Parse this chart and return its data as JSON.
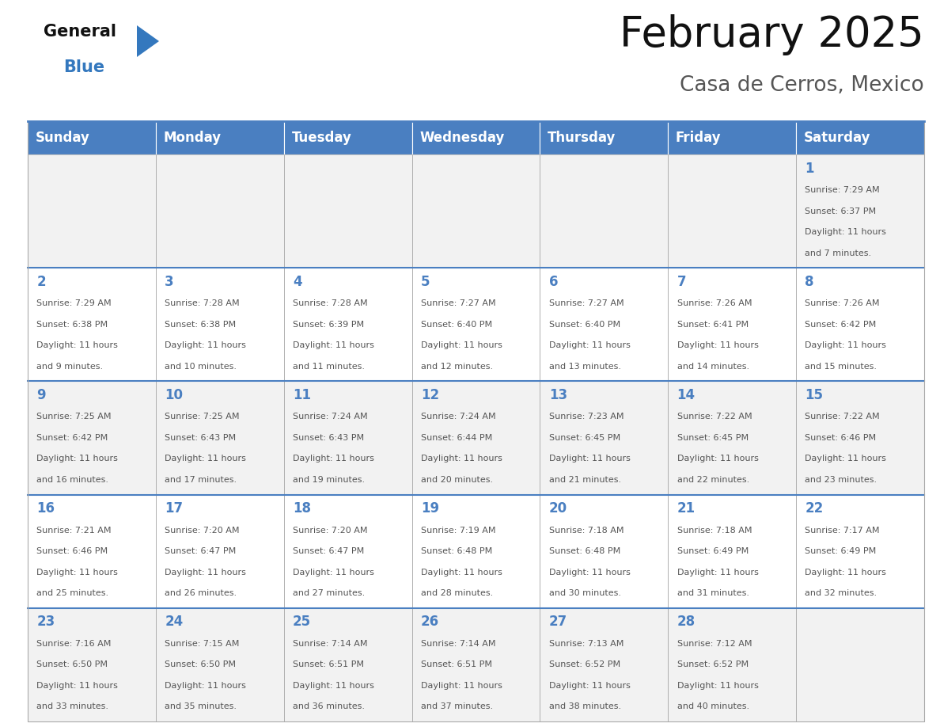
{
  "title": "February 2025",
  "subtitle": "Casa de Cerros, Mexico",
  "days_of_week": [
    "Sunday",
    "Monday",
    "Tuesday",
    "Wednesday",
    "Thursday",
    "Friday",
    "Saturday"
  ],
  "header_bg": "#4a7fc1",
  "header_text": "#FFFFFF",
  "cell_bg_odd_row": "#F2F2F2",
  "cell_bg_even_row": "#FFFFFF",
  "cell_border": "#AAAAAA",
  "day_num_color": "#4a7fc1",
  "text_color": "#555555",
  "title_color": "#111111",
  "subtitle_color": "#555555",
  "logo_general_color": "#111111",
  "logo_blue_color": "#3478BE",
  "calendar": [
    [
      null,
      null,
      null,
      null,
      null,
      null,
      1
    ],
    [
      2,
      3,
      4,
      5,
      6,
      7,
      8
    ],
    [
      9,
      10,
      11,
      12,
      13,
      14,
      15
    ],
    [
      16,
      17,
      18,
      19,
      20,
      21,
      22
    ],
    [
      23,
      24,
      25,
      26,
      27,
      28,
      null
    ]
  ],
  "sunrise": {
    "1": "7:29 AM",
    "2": "7:29 AM",
    "3": "7:28 AM",
    "4": "7:28 AM",
    "5": "7:27 AM",
    "6": "7:27 AM",
    "7": "7:26 AM",
    "8": "7:26 AM",
    "9": "7:25 AM",
    "10": "7:25 AM",
    "11": "7:24 AM",
    "12": "7:24 AM",
    "13": "7:23 AM",
    "14": "7:22 AM",
    "15": "7:22 AM",
    "16": "7:21 AM",
    "17": "7:20 AM",
    "18": "7:20 AM",
    "19": "7:19 AM",
    "20": "7:18 AM",
    "21": "7:18 AM",
    "22": "7:17 AM",
    "23": "7:16 AM",
    "24": "7:15 AM",
    "25": "7:14 AM",
    "26": "7:14 AM",
    "27": "7:13 AM",
    "28": "7:12 AM"
  },
  "sunset": {
    "1": "6:37 PM",
    "2": "6:38 PM",
    "3": "6:38 PM",
    "4": "6:39 PM",
    "5": "6:40 PM",
    "6": "6:40 PM",
    "7": "6:41 PM",
    "8": "6:42 PM",
    "9": "6:42 PM",
    "10": "6:43 PM",
    "11": "6:43 PM",
    "12": "6:44 PM",
    "13": "6:45 PM",
    "14": "6:45 PM",
    "15": "6:46 PM",
    "16": "6:46 PM",
    "17": "6:47 PM",
    "18": "6:47 PM",
    "19": "6:48 PM",
    "20": "6:48 PM",
    "21": "6:49 PM",
    "22": "6:49 PM",
    "23": "6:50 PM",
    "24": "6:50 PM",
    "25": "6:51 PM",
    "26": "6:51 PM",
    "27": "6:52 PM",
    "28": "6:52 PM"
  },
  "daylight": {
    "1": "11 hours and 7 minutes.",
    "2": "11 hours and 9 minutes.",
    "3": "11 hours and 10 minutes.",
    "4": "11 hours and 11 minutes.",
    "5": "11 hours and 12 minutes.",
    "6": "11 hours and 13 minutes.",
    "7": "11 hours and 14 minutes.",
    "8": "11 hours and 15 minutes.",
    "9": "11 hours and 16 minutes.",
    "10": "11 hours and 17 minutes.",
    "11": "11 hours and 19 minutes.",
    "12": "11 hours and 20 minutes.",
    "13": "11 hours and 21 minutes.",
    "14": "11 hours and 22 minutes.",
    "15": "11 hours and 23 minutes.",
    "16": "11 hours and 25 minutes.",
    "17": "11 hours and 26 minutes.",
    "18": "11 hours and 27 minutes.",
    "19": "11 hours and 28 minutes.",
    "20": "11 hours and 30 minutes.",
    "21": "11 hours and 31 minutes.",
    "22": "11 hours and 32 minutes.",
    "23": "11 hours and 33 minutes.",
    "24": "11 hours and 35 minutes.",
    "25": "11 hours and 36 minutes.",
    "26": "11 hours and 37 minutes.",
    "27": "11 hours and 38 minutes.",
    "28": "11 hours and 40 minutes."
  },
  "fig_width": 11.88,
  "fig_height": 9.18,
  "dpi": 100
}
